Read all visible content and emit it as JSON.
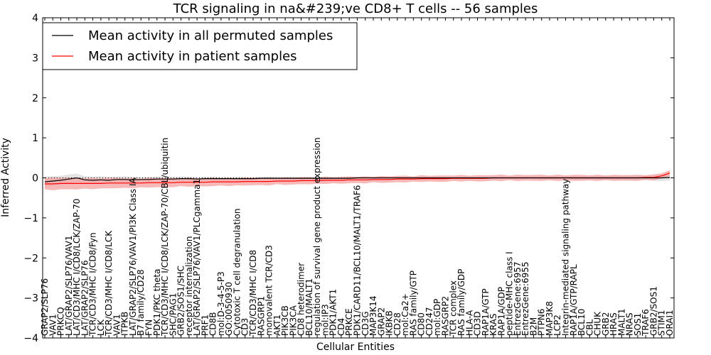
{
  "chart_data": {
    "type": "line",
    "title": "TCR signaling in na&#239;ve CD8+ T cells -- 56 samples",
    "xlabel": "Cellular Entities",
    "ylabel": "Inferred Activity",
    "ylim": [
      -4,
      4
    ],
    "yticks": [
      4,
      3,
      2,
      1,
      0,
      -1,
      -2,
      -3,
      -4
    ],
    "ytick_labels": [
      "4",
      "3",
      "2",
      "1",
      "0",
      "−1",
      "−2",
      "−3",
      "−4"
    ],
    "baseline": 0,
    "legend": {
      "placement": "top-left",
      "entries": [
        {
          "label": "Mean activity in all permuted samples",
          "color": "#000000"
        },
        {
          "label": "Mean activity in patient samples",
          "color": "#ff0000"
        }
      ]
    },
    "colors": {
      "permuted": "#000000",
      "patient": "#ff0000",
      "patient_band": "#f4a0a0",
      "permuted_band": "#d7d7d7"
    },
    "entities": [
      "GRAP2/SLP76",
      "VAV1",
      "PRKCQ",
      "LAT/GRAP2/SLP76/VAV1",
      "LAT/CD3/MHC I/CD8/LCK/ZAP-70",
      "LAT/GRAP2/SLP76",
      "TCR/CD3/MHC I/CD8/Fyn",
      "LCK",
      "TCR/CD3/MHC I/CD8/LCK",
      "VAV1",
      "ITPKB",
      "LAT/GRAP2/SLP76/VAV1/PI3K Class IA",
      "B7 family/CD28",
      "FYN",
      "PDK1/PKC theta",
      "TCR/CD3/MHC I/CD8/LCK/ZAP-70/CBL/ubiquitin",
      "SHC/PAG1",
      "GRB2/SOS1/SHC",
      "receptor internalization",
      "LAT/GRAP2/SLP76/VAV1/PLCgamma1",
      "PRF1",
      "CD8B",
      "mol:D-3-4-5-P3",
      "GO:0050930",
      "Cytotoxic T cell degranulation",
      "CD3",
      "TCR/CD3/MHC I/CD8",
      "RASGRP1",
      "monovalent TCR/CD3",
      "AKT1",
      "PIK3CB",
      "PIK3CA",
      "CD8 heterodimer",
      "BCL10/MALT1",
      "regulation of survival gene product expression",
      "mol:IP3",
      "PDK1/AKT1",
      "CD4",
      "PRKCE",
      "PDK1/CARD11/BCL10/MALT1/TRAF6",
      "CD3G",
      "MAP3K14",
      "GRAP2",
      "IKBKB",
      "CD28",
      "mol:Ca2+",
      "RAS family/GTP",
      "CD80",
      "CD247",
      "mol:GDP",
      "RASGRP2",
      "TCR complex",
      "RAS family/GDP",
      "HLA-A",
      "CD3D",
      "RAP1A/GTP",
      "KRAS",
      "RAP1A/GDP",
      "peptide-MHC class I",
      "EntrezGene:6957",
      "EntrezGene:6955",
      "B2M",
      "PTPN6",
      "MAP3K8",
      "LCP2",
      "Integrin-mediated signaling pathway",
      "RAP1A/GTP/RAPL",
      "BCL10",
      "CBL",
      "CHUK",
      "GRB2",
      "HRAS",
      "MALT1",
      "NRAS",
      "SOS1",
      "TRAF6",
      "GRB2/SOS1",
      "STIM1",
      "ORAI1"
    ],
    "series": [
      {
        "name": "Mean activity in all permuted samples",
        "values": [
          -0.1,
          -0.08,
          -0.06,
          -0.03,
          0.0,
          -0.05,
          -0.06,
          -0.05,
          -0.06,
          -0.04,
          -0.04,
          -0.05,
          -0.04,
          -0.04,
          -0.03,
          -0.03,
          -0.03,
          -0.02,
          -0.02,
          -0.03,
          -0.02,
          -0.02,
          -0.02,
          -0.02,
          -0.02,
          -0.02,
          -0.02,
          -0.01,
          -0.01,
          -0.01,
          -0.01,
          -0.01,
          -0.01,
          -0.01,
          -0.01,
          -0.01,
          -0.01,
          -0.01,
          -0.01,
          0.0,
          0.0,
          0.0,
          0.0,
          0.0,
          0.0,
          0.0,
          0.0,
          0.0,
          0.0,
          0.0,
          0.0,
          0.0,
          0.0,
          0.0,
          0.0,
          0.0,
          0.0,
          0.0,
          0.0,
          0.0,
          0.0,
          0.0,
          0.0,
          0.0,
          0.0,
          0.0,
          0.0,
          0.0,
          0.0,
          0.0,
          0.0,
          0.0,
          0.0,
          0.0,
          0.0,
          0.0,
          0.0,
          0.0,
          0.01
        ]
      },
      {
        "name": "Mean activity in patient samples",
        "values": [
          -0.15,
          -0.15,
          -0.14,
          -0.14,
          -0.14,
          -0.14,
          -0.14,
          -0.14,
          -0.13,
          -0.13,
          -0.13,
          -0.13,
          -0.13,
          -0.12,
          -0.12,
          -0.12,
          -0.12,
          -0.11,
          -0.11,
          -0.11,
          -0.11,
          -0.1,
          -0.1,
          -0.1,
          -0.1,
          -0.09,
          -0.09,
          -0.09,
          -0.09,
          -0.08,
          -0.08,
          -0.08,
          -0.07,
          -0.07,
          -0.07,
          -0.06,
          -0.06,
          -0.06,
          -0.05,
          -0.05,
          -0.05,
          -0.04,
          -0.04,
          -0.04,
          -0.03,
          -0.03,
          -0.03,
          -0.02,
          -0.02,
          -0.02,
          -0.02,
          -0.01,
          -0.01,
          -0.01,
          -0.01,
          -0.01,
          0.0,
          0.0,
          0.0,
          0.0,
          0.0,
          0.0,
          0.0,
          0.0,
          0.0,
          0.0,
          0.0,
          0.0,
          0.0,
          0.0,
          0.0,
          0.0,
          0.0,
          0.0,
          0.0,
          0.01,
          0.01,
          0.05,
          0.12
        ]
      }
    ]
  }
}
